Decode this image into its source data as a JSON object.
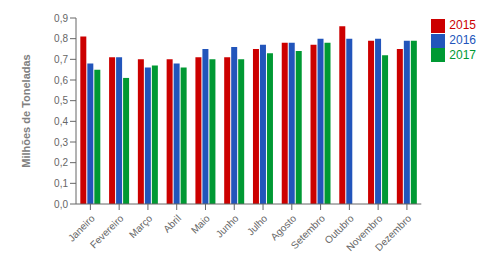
{
  "chart_data": {
    "type": "bar",
    "categories": [
      "Janeiro",
      "Fevereiro",
      "Março",
      "Abril",
      "Maio",
      "Junho",
      "Julho",
      "Agosto",
      "Setembro",
      "Outubro",
      "Novembro",
      "Dezembro"
    ],
    "series": [
      {
        "name": "2015",
        "color": "#cc0000",
        "values": [
          0.81,
          0.71,
          0.7,
          0.7,
          0.71,
          0.71,
          0.75,
          0.78,
          0.77,
          0.86,
          0.79,
          0.75
        ]
      },
      {
        "name": "2016",
        "color": "#2255bb",
        "values": [
          0.68,
          0.71,
          0.66,
          0.68,
          0.75,
          0.76,
          0.77,
          0.78,
          0.8,
          0.8,
          0.8,
          0.79
        ]
      },
      {
        "name": "2017",
        "color": "#009933",
        "values": [
          0.65,
          0.61,
          0.67,
          0.66,
          0.7,
          0.7,
          0.73,
          0.74,
          0.78,
          0.0,
          0.72,
          0.79
        ]
      }
    ],
    "ylabel": "Milhões de Toneladas",
    "ylim": [
      0,
      0.9
    ],
    "yticks": [
      {
        "value": 0,
        "label": "0,0"
      },
      {
        "value": 0.1,
        "label": "0,1"
      },
      {
        "value": 0.2,
        "label": "0,2"
      },
      {
        "value": 0.3,
        "label": "0,3"
      },
      {
        "value": 0.4,
        "label": "0,4"
      },
      {
        "value": 0.5,
        "label": "0,5"
      },
      {
        "value": 0.6,
        "label": "0,6"
      },
      {
        "value": 0.7,
        "label": "0,7"
      },
      {
        "value": 0.8,
        "label": "0,8"
      },
      {
        "value": 0.9,
        "label": "0,9"
      }
    ],
    "grid": false,
    "legend": "right"
  }
}
